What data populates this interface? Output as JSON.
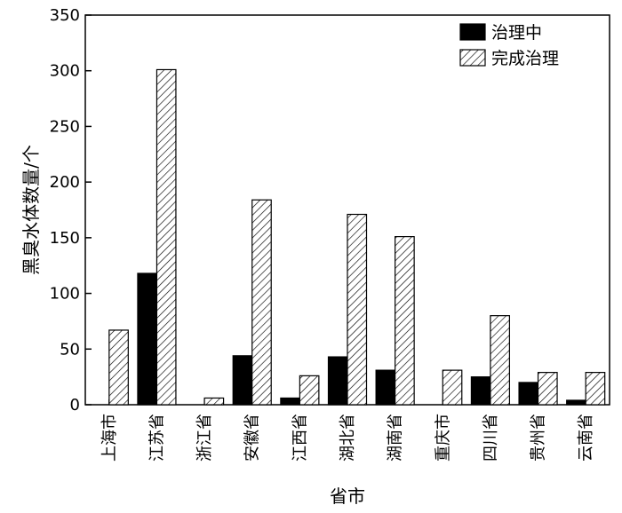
{
  "chart_data": {
    "type": "bar",
    "title": "",
    "xlabel": "省市",
    "ylabel": "黑臭水体数量/个",
    "ylim": [
      0,
      350
    ],
    "yticks": [
      0,
      50,
      100,
      150,
      200,
      250,
      300,
      350
    ],
    "grid": false,
    "legend_position": "top-right",
    "categories": [
      "上海市",
      "江苏省",
      "浙江省",
      "安徽省",
      "江西省",
      "湖北省",
      "湖南省",
      "重庆市",
      "四川省",
      "贵州省",
      "云南省"
    ],
    "series": [
      {
        "name": "治理中",
        "fill": "solid",
        "color": "#000000",
        "values": [
          0,
          118,
          0,
          44,
          6,
          43,
          31,
          0,
          25,
          20,
          4
        ]
      },
      {
        "name": "完成治理",
        "fill": "hatched",
        "color": "#000000",
        "values": [
          67,
          301,
          6,
          184,
          26,
          171,
          151,
          31,
          80,
          29,
          29
        ]
      }
    ]
  }
}
